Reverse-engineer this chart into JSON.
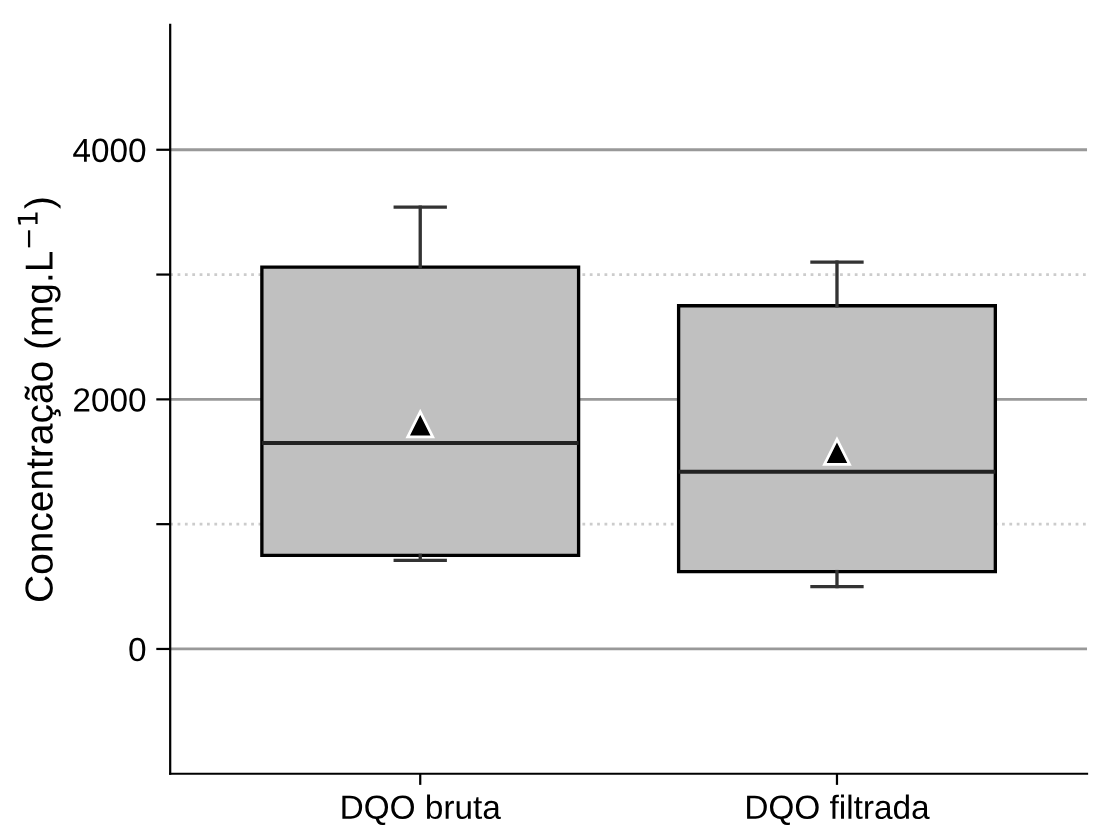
{
  "chart_data": {
    "type": "box",
    "categories": [
      "DQO bruta",
      "DQO filtrada"
    ],
    "ylabel": "Concentração (mg.L$^{−1}$)",
    "boxes": [
      {
        "low": 710,
        "q1": 750,
        "median": 1650,
        "q3": 3060,
        "high": 3540,
        "mean": 1800
      },
      {
        "low": 500,
        "q1": 620,
        "median": 1420,
        "q3": 2750,
        "high": 3100,
        "mean": 1580
      }
    ],
    "color": "#c0c0c0",
    "marker": "triangle",
    "ylim": [
      -1000,
      5000
    ],
    "yticks": [
      0,
      {
        "value": 1000,
        "label": null
      },
      2000,
      {
        "value": 3000,
        "label": null
      },
      4000
    ],
    "grid": "y"
  }
}
